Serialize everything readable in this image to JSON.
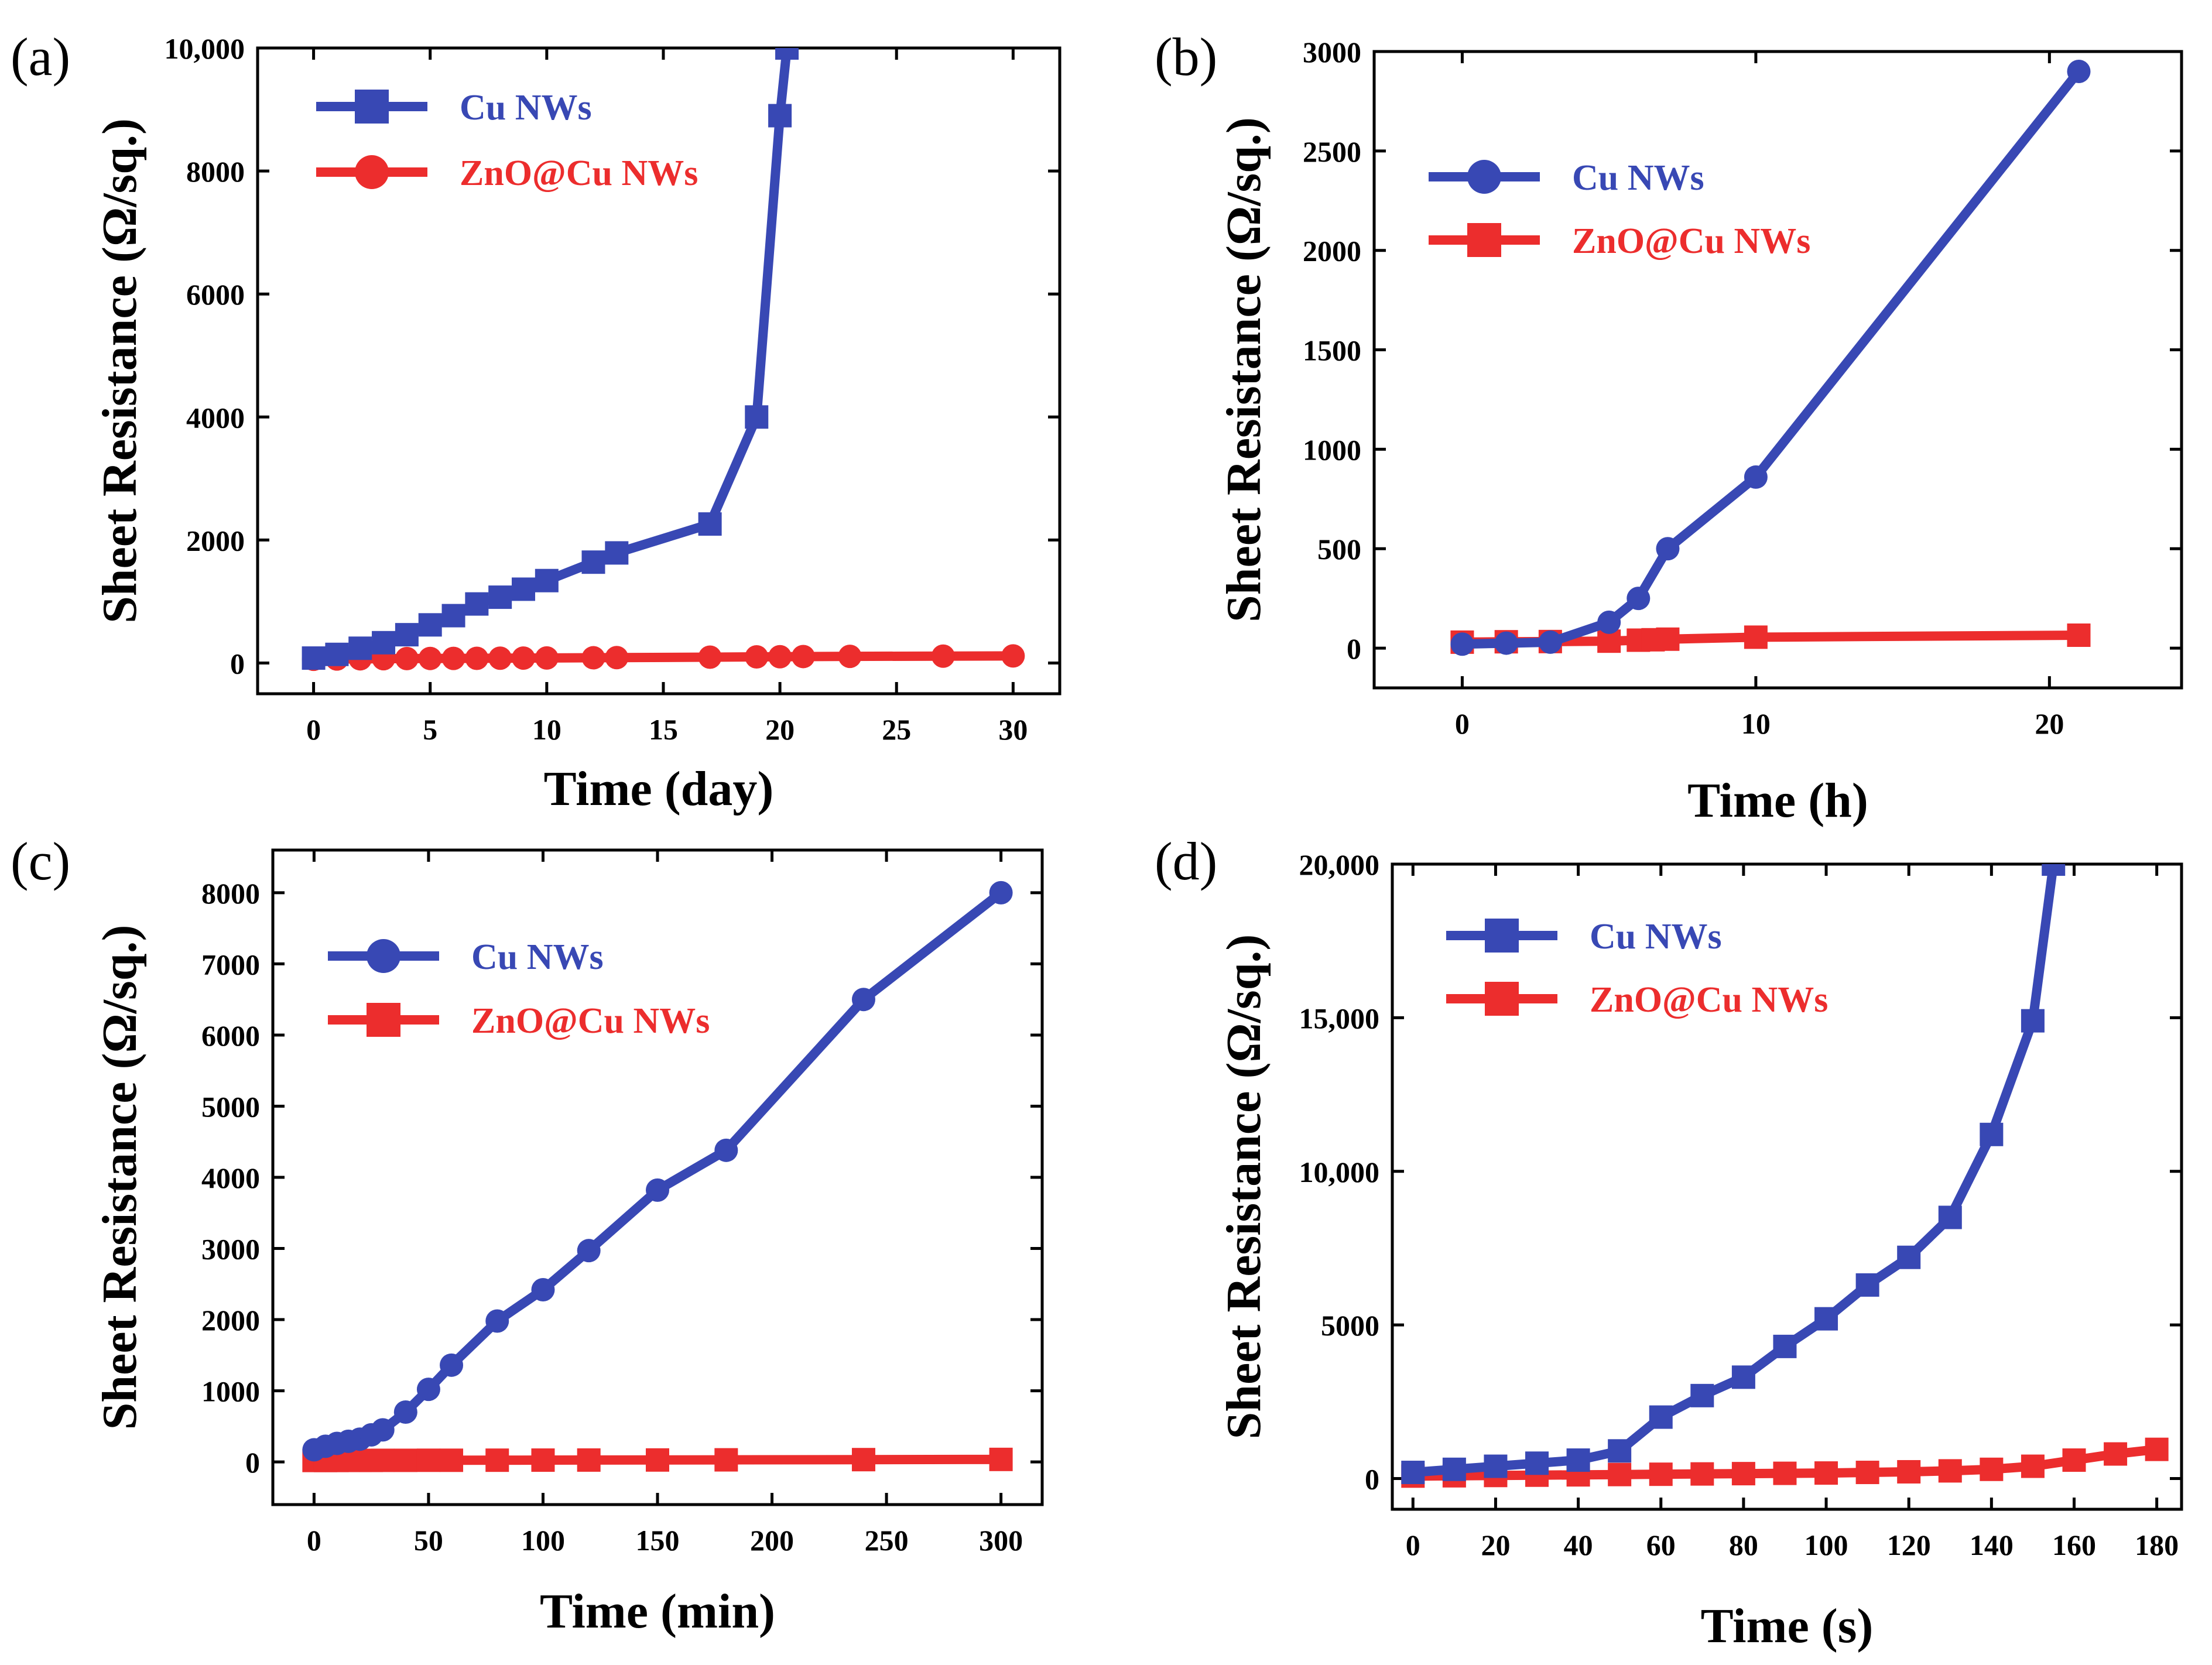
{
  "colors": {
    "cu": "#3848b4",
    "zno": "#ec2d2d",
    "axis": "#000000"
  },
  "series_names": {
    "cu": "Cu NWs",
    "zno": "ZnO@Cu NWs"
  },
  "chart_data": [
    {
      "panel": "(a)",
      "type": "line",
      "xlabel": "Time (day)",
      "ylabel": "Sheet Resistance (Ω/sq.)",
      "xlim": [
        -2.4,
        32
      ],
      "ylim": [
        -500,
        10000
      ],
      "xticks": [
        0,
        5,
        10,
        15,
        20,
        25,
        30
      ],
      "yticks": [
        0,
        2000,
        4000,
        6000,
        8000,
        10000
      ],
      "ytick_labels": [
        "0",
        "2000",
        "4000",
        "6000",
        "8000",
        "10,000"
      ],
      "legend": "top-left",
      "series": [
        {
          "name": "Cu NWs",
          "color": "#3848b4",
          "marker": "square",
          "x": [
            0,
            1,
            2,
            3,
            4,
            5,
            6,
            7,
            8,
            9,
            10,
            12,
            13,
            17,
            19,
            20,
            20.3
          ],
          "y": [
            80,
            140,
            240,
            330,
            460,
            620,
            770,
            960,
            1070,
            1200,
            1340,
            1640,
            1790,
            2260,
            4000,
            8900,
            10000
          ]
        },
        {
          "name": "ZnO@Cu NWs",
          "color": "#ec2d2d",
          "marker": "circle",
          "x": [
            0,
            1,
            2,
            3,
            4,
            5,
            6,
            7,
            8,
            9,
            10,
            12,
            13,
            17,
            19,
            20,
            21,
            23,
            27,
            30
          ],
          "y": [
            60,
            65,
            68,
            70,
            72,
            74,
            75,
            76,
            78,
            80,
            82,
            85,
            88,
            95,
            100,
            102,
            105,
            108,
            112,
            115
          ]
        }
      ]
    },
    {
      "panel": "(b)",
      "type": "line",
      "xlabel": "Time (h)",
      "ylabel": "Sheet Resistance (Ω/sq.)",
      "xlim": [
        -3,
        24.5
      ],
      "ylim": [
        -200,
        3000
      ],
      "xticks": [
        0,
        10,
        20
      ],
      "yticks": [
        0,
        500,
        1000,
        1500,
        2000,
        2500,
        3000
      ],
      "ytick_labels": [
        "0",
        "500",
        "1000",
        "1500",
        "2000",
        "2500",
        "3000"
      ],
      "legend": "top-left",
      "series": [
        {
          "name": "Cu NWs",
          "color": "#3848b4",
          "marker": "circle",
          "x": [
            0,
            1.5,
            3,
            5,
            6,
            7,
            10,
            21
          ],
          "y": [
            20,
            25,
            30,
            130,
            250,
            500,
            860,
            2900
          ]
        },
        {
          "name": "ZnO@Cu NWs",
          "color": "#ec2d2d",
          "marker": "square",
          "x": [
            0,
            1.5,
            3,
            5,
            6,
            6.5,
            7,
            10,
            21
          ],
          "y": [
            30,
            32,
            33,
            35,
            40,
            42,
            45,
            55,
            65
          ]
        }
      ]
    },
    {
      "panel": "(c)",
      "type": "line",
      "xlabel": "Time (min)",
      "ylabel": "Sheet Resistance (Ω/sq.)",
      "xlim": [
        -18,
        318
      ],
      "ylim": [
        -600,
        8600
      ],
      "xticks": [
        0,
        50,
        100,
        150,
        200,
        250,
        300
      ],
      "yticks": [
        0,
        1000,
        2000,
        3000,
        4000,
        5000,
        6000,
        7000,
        8000
      ],
      "ytick_labels": [
        "0",
        "1000",
        "2000",
        "3000",
        "4000",
        "5000",
        "6000",
        "7000",
        "8000"
      ],
      "legend": "top-left",
      "series": [
        {
          "name": "Cu NWs",
          "color": "#3848b4",
          "marker": "circle",
          "x": [
            0,
            5,
            10,
            15,
            20,
            25,
            30,
            40,
            50,
            60,
            80,
            100,
            120,
            150,
            180,
            240,
            300
          ],
          "y": [
            170,
            220,
            260,
            290,
            320,
            380,
            450,
            700,
            1020,
            1360,
            1980,
            2420,
            2970,
            3820,
            4380,
            6500,
            8000
          ]
        },
        {
          "name": "ZnO@Cu NWs",
          "color": "#ec2d2d",
          "marker": "square",
          "x": [
            0,
            5,
            10,
            15,
            20,
            25,
            30,
            40,
            50,
            60,
            80,
            100,
            120,
            150,
            180,
            240,
            300
          ],
          "y": [
            20,
            20,
            20,
            21,
            21,
            21,
            22,
            22,
            23,
            23,
            24,
            25,
            26,
            27,
            29,
            32,
            35
          ]
        }
      ]
    },
    {
      "panel": "(d)",
      "type": "line",
      "xlabel": "Time (s)",
      "ylabel": "Sheet Resistance (Ω/sq.)",
      "xlim": [
        -5,
        186
      ],
      "ylim": [
        -1000,
        20000
      ],
      "xticks": [
        0,
        20,
        40,
        60,
        80,
        100,
        120,
        140,
        160,
        180
      ],
      "yticks": [
        0,
        5000,
        10000,
        15000,
        20000
      ],
      "ytick_labels": [
        "0",
        "5000",
        "10,000",
        "15,000",
        "20,000"
      ],
      "legend": "top-left",
      "series": [
        {
          "name": "Cu NWs",
          "color": "#3848b4",
          "marker": "square",
          "x": [
            0,
            10,
            20,
            30,
            40,
            50,
            60,
            70,
            80,
            90,
            100,
            110,
            120,
            130,
            140,
            150,
            155
          ],
          "y": [
            200,
            300,
            400,
            500,
            600,
            900,
            2000,
            2700,
            3300,
            4300,
            5200,
            6300,
            7200,
            8500,
            11200,
            14900,
            20000
          ]
        },
        {
          "name": "ZnO@Cu NWs",
          "color": "#ec2d2d",
          "marker": "square",
          "x": [
            0,
            10,
            20,
            30,
            40,
            50,
            60,
            70,
            80,
            90,
            100,
            110,
            120,
            130,
            140,
            150,
            160,
            170,
            180
          ],
          "y": [
            80,
            90,
            100,
            110,
            120,
            130,
            140,
            150,
            160,
            170,
            180,
            200,
            220,
            250,
            300,
            400,
            600,
            800,
            950
          ]
        }
      ]
    }
  ]
}
